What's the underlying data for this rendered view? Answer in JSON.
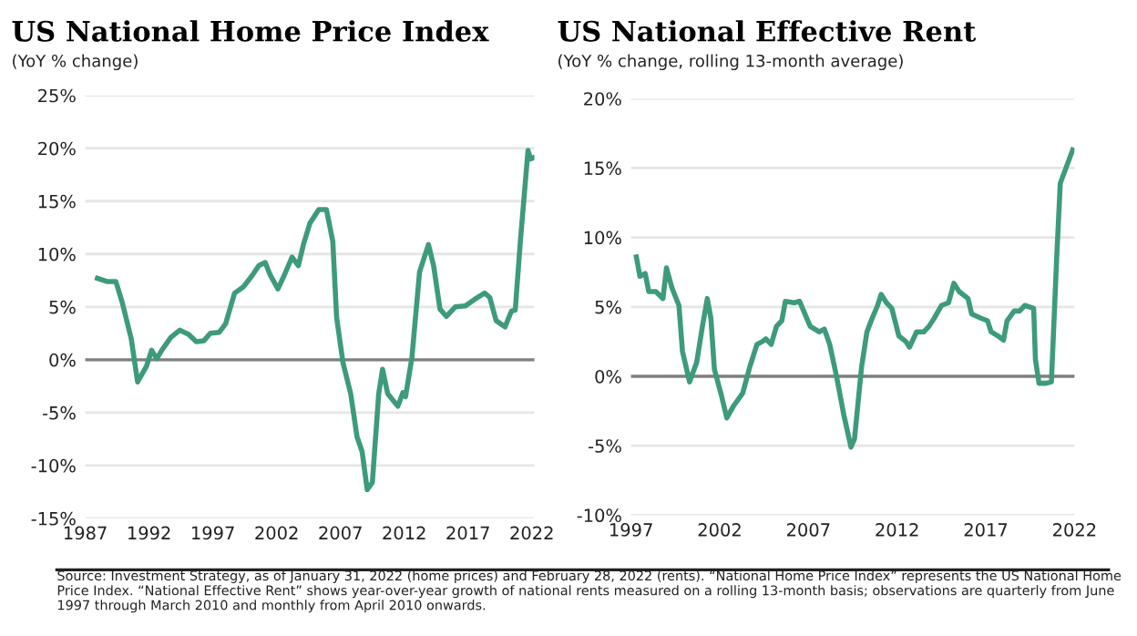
{
  "chart_data": [
    {
      "type": "line",
      "title": "US National Home Price Index",
      "subtitle": "(YoY % change)",
      "series": [
        {
          "color": "#3d9b7b",
          "x": [
            1987.95,
            1988.7,
            1989.4,
            1989.9,
            1990.6,
            1991.1,
            1991.8,
            1992.2,
            1992.6,
            1993.0,
            1993.7,
            1994.4,
            1995.1,
            1995.7,
            1996.3,
            1996.8,
            1997.5,
            1998.0,
            1998.7,
            1999.4,
            2000.1,
            2000.6,
            2001.1,
            2001.5,
            2002.1,
            2002.6,
            2003.2,
            2003.7,
            2004.1,
            2004.6,
            2005.3,
            2005.9,
            2006.4,
            2006.7,
            2007.2,
            2007.8,
            2008.3,
            2008.7,
            2009.1,
            2009.5,
            2010.0,
            2010.3,
            2010.7,
            2011.1,
            2011.5,
            2011.9,
            2012.1,
            2012.6,
            2013.2,
            2013.9,
            2014.3,
            2014.8,
            2015.3,
            2016.0,
            2016.8,
            2017.5,
            2018.3,
            2018.7,
            2019.2,
            2019.9,
            2020.4,
            2020.7,
            2021.1,
            2021.7,
            2021.9,
            2022.1
          ],
          "values": [
            7.7,
            7.4,
            7.4,
            5.4,
            2.0,
            -2.1,
            -0.6,
            0.9,
            0.1,
            0.9,
            2.1,
            2.8,
            2.4,
            1.7,
            1.8,
            2.5,
            2.6,
            3.4,
            6.3,
            6.9,
            8.0,
            8.9,
            9.2,
            8.0,
            6.7,
            8.0,
            9.7,
            8.9,
            10.9,
            12.9,
            14.2,
            14.2,
            11.2,
            4.0,
            -0.3,
            -3.2,
            -7.3,
            -8.7,
            -12.3,
            -11.6,
            -3.2,
            -0.9,
            -3.2,
            -3.8,
            -4.4,
            -3.1,
            -3.5,
            0.2,
            8.3,
            10.9,
            8.9,
            4.8,
            4.1,
            5.0,
            5.1,
            5.7,
            6.3,
            5.9,
            3.7,
            3.1,
            4.6,
            4.7,
            11.2,
            19.8,
            19.0,
            19.1
          ]
        }
      ],
      "xlim": [
        1987,
        2022.2
      ],
      "xticks": [
        1987,
        1992,
        1997,
        2002,
        2007,
        2012,
        2017,
        2022
      ],
      "ylim": [
        -15,
        25
      ],
      "yticks": [
        {
          "value": -15,
          "label": "-15%"
        },
        {
          "value": -10,
          "label": "-10%"
        },
        {
          "value": -5,
          "label": "-5%"
        },
        {
          "value": 0,
          "label": "0%"
        },
        {
          "value": 5,
          "label": "5%"
        },
        {
          "value": 10,
          "label": "10%"
        },
        {
          "value": 15,
          "label": "15%"
        },
        {
          "value": 20,
          "label": "20%"
        },
        {
          "value": 25,
          "label": "25%"
        }
      ],
      "grid": "y",
      "ref_lines": [
        {
          "axis": "y",
          "value": 0,
          "color": "#7f7f7f"
        }
      ],
      "annotations": [
        "Source: Investment Strategy, as of January 31, 2022 (home prices) and February 28, 2022 (rents). “National Home Price Index” represents the US National Home Price Index. “National Effective Rent” shows year-over-year growth of national rents measured on a rolling 13-month basis; observations are quarterly from June 1997 through March 2010 and monthly from April 2010 onwards."
      ]
    },
    {
      "type": "line",
      "title": "US National Effective Rent",
      "subtitle": "(YoY % change, rolling 13-month average)",
      "series": [
        {
          "color": "#3d9b7b",
          "x": [
            1997.3,
            1997.5,
            1997.8,
            1998.0,
            1998.4,
            1998.8,
            1999.0,
            1999.3,
            1999.7,
            1999.9,
            2000.3,
            2000.7,
            2001.0,
            2001.3,
            2001.5,
            2001.7,
            2002.1,
            2002.4,
            2002.8,
            2003.3,
            2003.7,
            2004.1,
            2004.4,
            2004.6,
            2004.9,
            2005.2,
            2005.5,
            2005.7,
            2006.2,
            2006.5,
            2006.8,
            2007.1,
            2007.6,
            2007.9,
            2008.2,
            2008.6,
            2009.0,
            2009.4,
            2009.6,
            2010.0,
            2010.3,
            2010.6,
            2010.9,
            2011.1,
            2011.4,
            2011.7,
            2012.1,
            2012.5,
            2012.7,
            2013.1,
            2013.5,
            2013.8,
            2014.1,
            2014.5,
            2014.9,
            2015.2,
            2015.5,
            2016.0,
            2016.2,
            2016.7,
            2017.1,
            2017.3,
            2017.7,
            2018.0,
            2018.2,
            2018.6,
            2018.9,
            2019.2,
            2019.7,
            2019.8,
            2020.0,
            2020.4,
            2020.7,
            2021.0,
            2021.2,
            2021.9
          ],
          "values": [
            8.6,
            7.2,
            7.4,
            6.1,
            6.1,
            5.6,
            7.8,
            6.4,
            5.1,
            1.8,
            -0.4,
            1.0,
            3.4,
            5.6,
            4.2,
            0.5,
            -1.4,
            -3.0,
            -2.1,
            -1.2,
            0.7,
            2.3,
            2.5,
            2.7,
            2.3,
            3.6,
            4.0,
            5.4,
            5.3,
            5.4,
            4.5,
            3.6,
            3.2,
            3.4,
            2.3,
            -0.1,
            -2.8,
            -5.1,
            -4.5,
            0.7,
            3.2,
            4.2,
            5.1,
            5.9,
            5.3,
            4.9,
            2.9,
            2.5,
            2.1,
            3.2,
            3.2,
            3.6,
            4.2,
            5.1,
            5.3,
            6.7,
            6.1,
            5.6,
            4.5,
            4.2,
            4.0,
            3.2,
            2.9,
            2.6,
            4.0,
            4.7,
            4.7,
            5.1,
            4.9,
            1.2,
            -0.5,
            -0.5,
            -0.4,
            8.6,
            13.9,
            16.3
          ]
        }
      ],
      "xlim": [
        1997,
        2022
      ],
      "xticks": [
        1997,
        2002,
        2007,
        2012,
        2017,
        2022
      ],
      "ylim": [
        -10,
        20
      ],
      "yticks": [
        {
          "value": -10,
          "label": "-10%"
        },
        {
          "value": -5,
          "label": "-5%"
        },
        {
          "value": 0,
          "label": "0%"
        },
        {
          "value": 5,
          "label": "5%"
        },
        {
          "value": 10,
          "label": "10%"
        },
        {
          "value": 15,
          "label": "15%"
        },
        {
          "value": 20,
          "label": "20%"
        }
      ],
      "grid": "y",
      "ref_lines": [
        {
          "axis": "y",
          "value": 0,
          "color": "#7f7f7f"
        }
      ]
    }
  ]
}
